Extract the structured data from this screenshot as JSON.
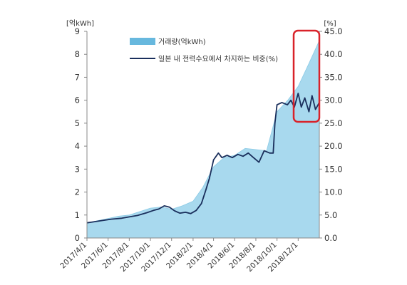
{
  "chart_data": {
    "type": "area+line",
    "left_axis": {
      "unit": "[억kWh]",
      "ticks": [
        "0",
        "1",
        "2",
        "3",
        "4",
        "5",
        "6",
        "7",
        "8",
        "9"
      ],
      "range": [
        0,
        9
      ]
    },
    "right_axis": {
      "unit": "[%]",
      "ticks": [
        "0.0",
        "5.0",
        "10.0",
        "15.0",
        "20.0",
        "25.0",
        "30.0",
        "35.0",
        "40.0",
        "45.0"
      ],
      "range": [
        0,
        45
      ]
    },
    "x_ticks": [
      "2017/4/1",
      "2017/6/1",
      "2017/8/1",
      "2017/10/1",
      "2017/12/1",
      "2018/2/1",
      "2018/4/1",
      "2018/6/1",
      "2018/8/1",
      "2018/10/1",
      "2018/12/1"
    ],
    "x_range": [
      "2017/4/1",
      "2019/1/31"
    ],
    "series": [
      {
        "name": "거래량(억kWh)",
        "kind": "area",
        "axis": "left",
        "color": "#a8d9ee",
        "points": [
          [
            "2017/4/1",
            0.65
          ],
          [
            "2017/5/1",
            0.75
          ],
          [
            "2017/6/1",
            0.85
          ],
          [
            "2017/7/1",
            0.95
          ],
          [
            "2017/8/1",
            1.0
          ],
          [
            "2017/9/1",
            1.15
          ],
          [
            "2017/10/1",
            1.3
          ],
          [
            "2017/11/1",
            1.35
          ],
          [
            "2017/12/1",
            1.25
          ],
          [
            "2018/1/1",
            1.4
          ],
          [
            "2018/2/1",
            1.6
          ],
          [
            "2018/3/1",
            2.2
          ],
          [
            "2018/4/1",
            3.1
          ],
          [
            "2018/5/1",
            3.5
          ],
          [
            "2018/6/1",
            3.6
          ],
          [
            "2018/7/1",
            3.9
          ],
          [
            "2018/8/1",
            3.85
          ],
          [
            "2018/9/1",
            3.8
          ],
          [
            "2018/10/1",
            5.5
          ],
          [
            "2018/11/1",
            6.0
          ],
          [
            "2018/12/1",
            6.6
          ],
          [
            "2019/1/1",
            7.6
          ],
          [
            "2019/1/31",
            8.6
          ]
        ]
      },
      {
        "name": "일본 내 전력수요에서 차지하는 비중(%)",
        "kind": "line",
        "axis": "right",
        "color": "#1a2f5c",
        "points": [
          [
            "2017/4/1",
            3.3
          ],
          [
            "2017/4/20",
            3.5
          ],
          [
            "2017/5/15",
            3.8
          ],
          [
            "2017/6/10",
            4.1
          ],
          [
            "2017/7/10",
            4.3
          ],
          [
            "2017/8/1",
            4.6
          ],
          [
            "2017/8/25",
            4.9
          ],
          [
            "2017/9/20",
            5.5
          ],
          [
            "2017/10/10",
            6.0
          ],
          [
            "2017/10/25",
            6.3
          ],
          [
            "2017/11/10",
            7.0
          ],
          [
            "2017/11/25",
            6.7
          ],
          [
            "2017/12/10",
            5.9
          ],
          [
            "2017/12/25",
            5.4
          ],
          [
            "2018/1/10",
            5.6
          ],
          [
            "2018/1/25",
            5.3
          ],
          [
            "2018/2/10",
            6.0
          ],
          [
            "2018/2/25",
            7.5
          ],
          [
            "2018/3/10",
            10.5
          ],
          [
            "2018/3/20",
            13.0
          ],
          [
            "2018/4/1",
            17.0
          ],
          [
            "2018/4/15",
            18.5
          ],
          [
            "2018/4/25",
            17.5
          ],
          [
            "2018/5/10",
            18.0
          ],
          [
            "2018/5/25",
            17.5
          ],
          [
            "2018/6/10",
            18.2
          ],
          [
            "2018/6/25",
            17.8
          ],
          [
            "2018/7/10",
            18.5
          ],
          [
            "2018/7/25",
            17.5
          ],
          [
            "2018/8/10",
            16.5
          ],
          [
            "2018/8/25",
            19.0
          ],
          [
            "2018/9/10",
            18.5
          ],
          [
            "2018/9/20",
            18.5
          ],
          [
            "2018/9/25",
            25.0
          ],
          [
            "2018/10/1",
            29.0
          ],
          [
            "2018/10/15",
            29.5
          ],
          [
            "2018/10/31",
            29.0
          ],
          [
            "2018/11/10",
            30.0
          ],
          [
            "2018/11/20",
            28.5
          ],
          [
            "2018/12/1",
            31.5
          ],
          [
            "2018/12/10",
            28.5
          ],
          [
            "2018/12/20",
            30.5
          ],
          [
            "2019/1/1",
            27.5
          ],
          [
            "2019/1/10",
            31.0
          ],
          [
            "2019/1/20",
            28.0
          ],
          [
            "2019/1/31",
            29.5
          ]
        ]
      }
    ],
    "legend_position": "top-left",
    "grid": false,
    "annotation": {
      "shape": "red-rounded-rectangle",
      "color": "#d9232a",
      "x_range": [
        "2018/12/15",
        "2019/1/31"
      ]
    }
  }
}
